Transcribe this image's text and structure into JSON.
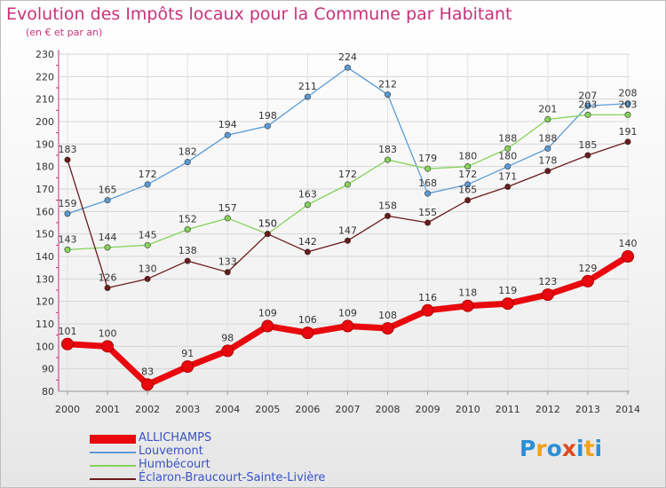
{
  "header": {
    "title": "Evolution des Impôts locaux pour la Commune par Habitant",
    "subtitle": "(en € et par an)"
  },
  "logo": {
    "letters": [
      "P",
      "r",
      "o",
      "x",
      "i",
      "t",
      "i"
    ],
    "colors": [
      "#2b8fd6",
      "#f0a21c",
      "#2b8fd6",
      "#e04a1c",
      "#2b8fd6",
      "#f0a21c",
      "#2b8fd6"
    ]
  },
  "chart_data": {
    "type": "line",
    "x": [
      2000,
      2001,
      2002,
      2003,
      2004,
      2005,
      2006,
      2007,
      2008,
      2009,
      2010,
      2011,
      2012,
      2013,
      2014
    ],
    "ylim": [
      80,
      230
    ],
    "yticks": [
      80,
      90,
      100,
      110,
      120,
      130,
      140,
      150,
      160,
      170,
      180,
      190,
      200,
      210,
      220,
      230
    ],
    "grid": true,
    "legend_position": "bottom",
    "series": [
      {
        "name": "ALLICHAMPS",
        "color": "#e8080d",
        "emphasis": true,
        "values": [
          101,
          100,
          83,
          91,
          98,
          109,
          106,
          109,
          108,
          116,
          118,
          119,
          123,
          129,
          140
        ]
      },
      {
        "name": "Louvemont",
        "color": "#5a9bd6",
        "values": [
          159,
          165,
          172,
          182,
          194,
          198,
          211,
          224,
          212,
          168,
          172,
          180,
          188,
          207,
          208
        ]
      },
      {
        "name": "Humbécourt",
        "color": "#86d35a",
        "values": [
          143,
          144,
          145,
          152,
          157,
          150,
          163,
          172,
          183,
          179,
          180,
          188,
          201,
          203,
          203
        ]
      },
      {
        "name": "Éclaron-Braucourt-Sainte-Livière",
        "color": "#6b1a1a",
        "values": [
          183,
          126,
          130,
          138,
          133,
          150,
          142,
          147,
          158,
          155,
          165,
          171,
          178,
          185,
          191
        ]
      }
    ]
  }
}
